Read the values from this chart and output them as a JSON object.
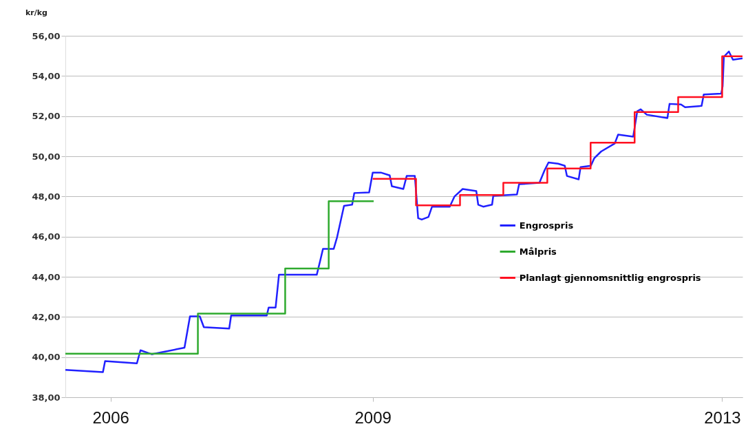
{
  "chart_data": {
    "type": "line",
    "ylabel": "kr/kg",
    "ylim": [
      38,
      56
    ],
    "yticks": [
      {
        "value": 38,
        "label": "38,00"
      },
      {
        "value": 40,
        "label": "40,00"
      },
      {
        "value": 42,
        "label": "42,00"
      },
      {
        "value": 44,
        "label": "44,00"
      },
      {
        "value": 46,
        "label": "46,00"
      },
      {
        "value": 48,
        "label": "48,00"
      },
      {
        "value": 50,
        "label": "50,00"
      },
      {
        "value": 52,
        "label": "52,00"
      },
      {
        "value": 54,
        "label": "54,00"
      },
      {
        "value": 56,
        "label": "56,00"
      }
    ],
    "xlim": [
      "2005-06-26",
      "2013-03-27"
    ],
    "xticks": [
      "2006",
      "2009",
      "2013"
    ],
    "grid": "y",
    "legend": "right",
    "marker": "none",
    "series": [
      {
        "name": "Engrospris",
        "type": "line",
        "color": "#2020ff",
        "x": [
          "2005-06-26",
          "2005-11-30",
          "2005-12-09",
          "2006-04-21",
          "2006-05-06",
          "2006-06-23",
          "2006-11-06",
          "2006-11-29",
          "2007-01-09",
          "2007-01-26",
          "2007-05-12",
          "2007-05-20",
          "2007-10-16",
          "2007-10-24",
          "2007-11-22",
          "2007-12-06",
          "2008-05-12",
          "2008-05-26",
          "2008-06-07",
          "2008-07-22",
          "2008-08-05",
          "2008-09-03",
          "2008-10-07",
          "2008-10-16",
          "2008-12-17",
          "2009-01-01",
          "2009-02-04",
          "2009-03-13",
          "2009-03-22",
          "2009-05-09",
          "2009-05-23",
          "2009-06-26",
          "2009-07-10",
          "2009-07-25",
          "2009-08-22",
          "2009-09-06",
          "2009-11-19",
          "2009-12-09",
          "2010-01-12",
          "2010-03-10",
          "2010-03-18",
          "2010-04-08",
          "2010-05-15",
          "2010-05-20",
          "2010-08-27",
          "2010-09-05",
          "2010-11-29",
          "2010-12-20",
          "2011-01-06",
          "2011-02-15",
          "2011-03-15",
          "2011-03-24",
          "2011-05-12",
          "2011-05-20",
          "2011-07-02",
          "2011-07-16",
          "2011-08-14",
          "2011-10-10",
          "2011-10-24",
          "2011-12-26",
          "2012-01-12",
          "2012-01-26",
          "2012-02-21",
          "2012-05-17",
          "2012-05-26",
          "2012-07-13",
          "2012-07-30",
          "2012-10-07",
          "2012-10-16",
          "2012-12-28",
          "2013-01-03",
          "2013-01-08",
          "2013-01-29",
          "2013-02-15",
          "2013-03-27"
        ],
        "values": [
          39.36,
          39.25,
          39.8,
          39.69,
          40.34,
          40.14,
          40.47,
          42.03,
          42.03,
          41.49,
          41.42,
          42.07,
          42.07,
          42.47,
          42.47,
          44.1,
          44.1,
          44.78,
          45.39,
          45.39,
          45.97,
          47.53,
          47.59,
          48.17,
          48.2,
          49.19,
          49.19,
          49.05,
          48.51,
          48.37,
          49.02,
          49.02,
          46.92,
          46.85,
          46.98,
          47.49,
          47.49,
          48.0,
          48.37,
          48.27,
          47.59,
          47.49,
          47.59,
          48.03,
          48.1,
          48.61,
          48.68,
          49.29,
          49.69,
          49.63,
          49.53,
          49.02,
          48.85,
          49.46,
          49.53,
          49.9,
          50.24,
          50.64,
          51.08,
          50.98,
          52.24,
          52.34,
          52.07,
          51.9,
          52.61,
          52.58,
          52.44,
          52.51,
          53.08,
          53.12,
          53.49,
          54.95,
          55.22,
          54.81,
          54.88
        ]
      },
      {
        "name": "Målpris",
        "type": "step",
        "color": "#2eaa2e",
        "x": [
          "2005-06-26",
          "2007-01-01",
          "2008-01-01",
          "2008-07-01",
          "2009-01-05"
        ],
        "values": [
          40.17,
          42.17,
          44.41,
          47.76,
          47.76
        ]
      },
      {
        "name": "Planlagt gjennomsnittlig engrospris",
        "type": "step",
        "color": "#ff1020",
        "x": [
          "2009-01-01",
          "2009-07-01",
          "2010-01-01",
          "2010-07-01",
          "2011-01-01",
          "2011-07-01",
          "2012-01-01",
          "2012-07-01",
          "2013-01-01",
          "2013-03-27"
        ],
        "values": [
          48.88,
          47.56,
          48.07,
          48.68,
          49.39,
          50.68,
          52.2,
          52.95,
          54.98,
          54.98
        ]
      }
    ]
  }
}
